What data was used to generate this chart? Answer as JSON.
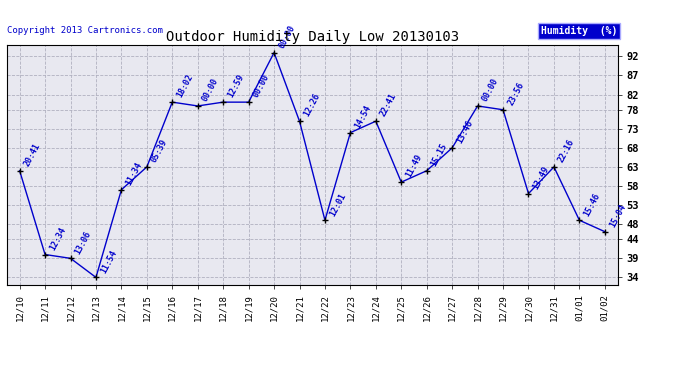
{
  "title": "Outdoor Humidity Daily Low 20130103",
  "copyright_text": "Copyright 2013 Cartronics.com",
  "legend_label": "Humidity  (%)",
  "x_labels": [
    "12/10",
    "12/11",
    "12/12",
    "12/13",
    "12/14",
    "12/15",
    "12/16",
    "12/17",
    "12/18",
    "12/19",
    "12/20",
    "12/21",
    "12/22",
    "12/23",
    "12/24",
    "12/25",
    "12/26",
    "12/27",
    "12/28",
    "12/29",
    "12/30",
    "12/31",
    "01/01",
    "01/02"
  ],
  "y_values": [
    62,
    40,
    39,
    34,
    57,
    63,
    80,
    79,
    80,
    80,
    93,
    75,
    49,
    72,
    75,
    59,
    62,
    68,
    79,
    78,
    56,
    63,
    49,
    46
  ],
  "time_labels": [
    "20:41",
    "12:34",
    "13:06",
    "11:54",
    "11:34",
    "05:39",
    "18:02",
    "00:00",
    "12:59",
    "00:00",
    "00:00",
    "12:26",
    "12:01",
    "14:54",
    "22:41",
    "11:49",
    "15:15",
    "13:46",
    "00:00",
    "23:56",
    "13:49",
    "22:16",
    "15:46",
    "15:04"
  ],
  "line_color": "#0000cc",
  "marker_color": "#000000",
  "bg_color": "#ffffff",
  "plot_bg_color": "#e8e8f0",
  "grid_color": "#b0b0c0",
  "text_color": "#0000cc",
  "title_color": "#000000",
  "ylim_min": 32,
  "ylim_max": 95,
  "yticks": [
    34,
    39,
    44,
    48,
    53,
    58,
    63,
    68,
    73,
    78,
    82,
    87,
    92
  ],
  "legend_bg": "#0000cc",
  "legend_text_color": "#ffffff",
  "border_color": "#000000"
}
